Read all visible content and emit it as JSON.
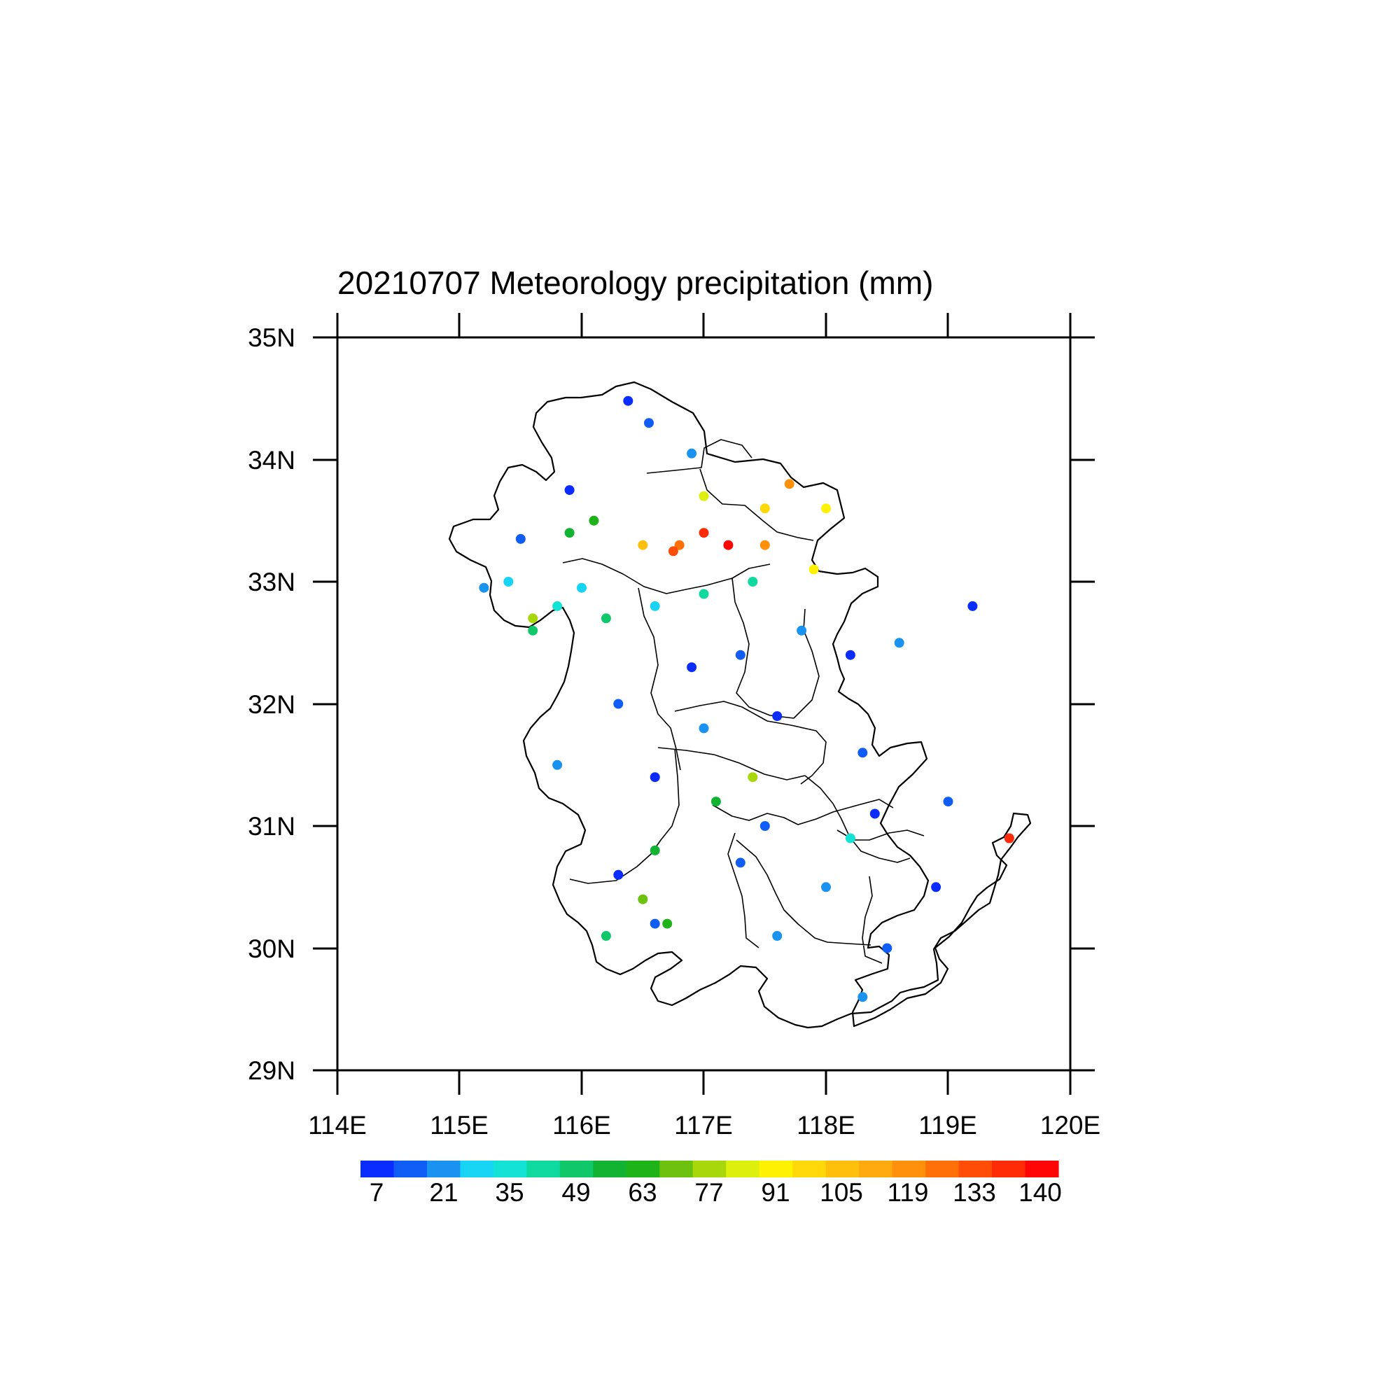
{
  "chart_data": {
    "type": "scatter",
    "title": "20210707 Meteorology precipitation (mm)",
    "xlabel": "",
    "ylabel": "",
    "xlim": [
      114,
      120
    ],
    "ylim": [
      29,
      35
    ],
    "x_ticks": [
      "114E",
      "115E",
      "116E",
      "117E",
      "118E",
      "119E",
      "120E"
    ],
    "y_ticks": [
      "29N",
      "30N",
      "31N",
      "32N",
      "33N",
      "34N",
      "35N"
    ],
    "grid": false,
    "colorbar": {
      "labels": [
        "7",
        "21",
        "35",
        "49",
        "63",
        "77",
        "91",
        "105",
        "119",
        "133",
        "140"
      ],
      "colors": [
        "#0a2cff",
        "#0f5df5",
        "#1a92f0",
        "#17d4f4",
        "#12e3d4",
        "#10d9a0",
        "#10c86a",
        "#12b233",
        "#1eb318",
        "#6cc20f",
        "#a8d80c",
        "#ddf00d",
        "#fff200",
        "#ffd80a",
        "#ffc00b",
        "#ffaa0c",
        "#ff900c",
        "#ff7009",
        "#ff4d07",
        "#ff2a06",
        "#ff0505"
      ]
    },
    "regions": [
      {
        "name": "",
        "range_mm": [
          0,
          20
        ],
        "stations": [
          [
            116.38,
            34.48
          ],
          [
            116.55,
            34.3
          ],
          [
            116.9,
            34.05
          ],
          [
            115.9,
            33.75
          ],
          [
            115.5,
            33.35
          ],
          [
            115.2,
            32.95
          ],
          [
            116.9,
            32.3
          ],
          [
            117.3,
            32.4
          ],
          [
            117.8,
            32.6
          ],
          [
            118.2,
            32.4
          ],
          [
            118.6,
            32.5
          ],
          [
            119.2,
            32.8
          ],
          [
            116.3,
            32.0
          ],
          [
            117.0,
            31.8
          ],
          [
            117.6,
            31.9
          ],
          [
            118.3,
            31.6
          ],
          [
            115.8,
            31.5
          ],
          [
            116.6,
            31.4
          ],
          [
            117.5,
            31.0
          ],
          [
            118.4,
            31.1
          ],
          [
            119.0,
            31.2
          ],
          [
            119.5,
            30.9
          ],
          [
            116.3,
            30.6
          ],
          [
            117.3,
            30.7
          ],
          [
            118.0,
            30.5
          ],
          [
            118.9,
            30.5
          ],
          [
            116.6,
            30.2
          ],
          [
            117.6,
            30.1
          ],
          [
            118.5,
            30.0
          ],
          [
            118.3,
            29.6
          ]
        ]
      },
      {
        "name": "",
        "range_mm": [
          20,
          50
        ],
        "stations": [
          [
            115.4,
            33.0
          ],
          [
            115.8,
            32.8
          ],
          [
            116.2,
            32.7
          ],
          [
            116.6,
            32.8
          ],
          [
            117.0,
            32.9
          ],
          [
            115.6,
            32.6
          ],
          [
            116.0,
            32.95
          ],
          [
            117.4,
            33.0
          ],
          [
            116.6,
            30.8
          ],
          [
            118.2,
            30.9
          ],
          [
            116.2,
            30.1
          ]
        ]
      },
      {
        "name": "",
        "range_mm": [
          50,
          77
        ],
        "stations": [
          [
            115.9,
            33.4
          ],
          [
            116.1,
            33.5
          ],
          [
            115.6,
            32.7
          ],
          [
            117.1,
            31.2
          ],
          [
            116.5,
            30.4
          ],
          [
            117.4,
            31.4
          ],
          [
            116.7,
            30.2
          ]
        ]
      },
      {
        "name": "",
        "range_mm": [
          77,
          119
        ],
        "stations": [
          [
            117.0,
            33.7
          ],
          [
            117.5,
            33.6
          ],
          [
            117.7,
            33.8
          ],
          [
            118.0,
            33.6
          ],
          [
            116.5,
            33.3
          ],
          [
            117.5,
            33.3
          ],
          [
            117.9,
            33.1
          ]
        ]
      },
      {
        "name": "",
        "range_mm": [
          119,
          140
        ],
        "stations": [
          [
            116.8,
            33.3
          ],
          [
            117.0,
            33.4
          ],
          [
            117.2,
            33.3
          ],
          [
            116.75,
            33.25
          ],
          [
            119.5,
            30.9
          ]
        ]
      }
    ]
  }
}
